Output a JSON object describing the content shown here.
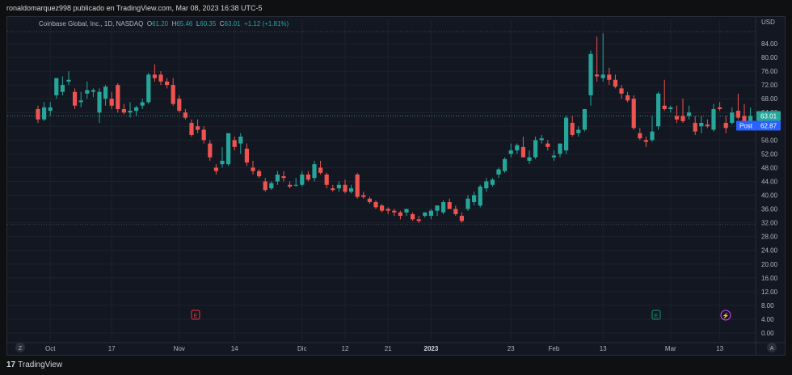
{
  "header": {
    "publisher_line": "ronaldomarquez998 publicado en TradingView.com, Mar 08, 2023 16:38 UTC-5"
  },
  "legend": {
    "symbol": "Coinbase Global, Inc., 1D, NASDAQ",
    "o_label": "O",
    "o": "61.20",
    "h_label": "H",
    "h": "65.46",
    "l_label": "L",
    "l": "60.35",
    "c_label": "C",
    "c": "63.01",
    "change": "+1.12 (+1.81%)"
  },
  "price_axis": {
    "currency": "USD",
    "last_price_badge": "63.01",
    "post_label": "Post",
    "post_price": "62.87"
  },
  "footer": {
    "brand": "TradingView",
    "brand_mark": "17",
    "z_button": "Z",
    "a_button": "A"
  },
  "events": [
    {
      "name": "earnings-flag-1",
      "glyph": "E",
      "color": "#f23645"
    },
    {
      "name": "earnings-flag-2",
      "glyph": "E",
      "color": "#089981"
    },
    {
      "name": "dividend-split-flag",
      "glyph": "⚡",
      "color": "#e040fb"
    }
  ],
  "colors": {
    "up": "#26a69a",
    "down": "#ef5350",
    "background": "#131722",
    "grid": "#1e222d",
    "last_price": "#26a69a",
    "post": "#2962ff"
  },
  "chart_data": {
    "type": "candlestick",
    "y_axis": {
      "min": 0,
      "max": 88,
      "ticks": [
        0,
        4,
        8,
        12,
        16,
        20,
        24,
        28,
        32,
        36,
        40,
        44,
        48,
        52,
        56,
        60,
        64,
        68,
        72,
        76,
        80,
        84
      ],
      "tick_labels": [
        "0.00",
        "4.00",
        "8.00",
        "12.00",
        "16.00",
        "20.00",
        "24.00",
        "28.00",
        "32.00",
        "36.00",
        "40.00",
        "44.00",
        "48.00",
        "52.00",
        "56.00",
        "60.00",
        "64.00",
        "68.00",
        "72.00",
        "76.00",
        "80.00",
        "84.00"
      ]
    },
    "x_labels": [
      {
        "label": "Oct",
        "index": 2,
        "bold": false
      },
      {
        "label": "17",
        "index": 12,
        "bold": false
      },
      {
        "label": "Nov",
        "index": 23,
        "bold": false
      },
      {
        "label": "14",
        "index": 32,
        "bold": false
      },
      {
        "label": "Dic",
        "index": 43,
        "bold": false
      },
      {
        "label": "12",
        "index": 50,
        "bold": false
      },
      {
        "label": "21",
        "index": 57,
        "bold": false
      },
      {
        "label": "2023",
        "index": 64,
        "bold": true
      },
      {
        "label": "23",
        "index": 77,
        "bold": false
      },
      {
        "label": "Feb",
        "index": 84,
        "bold": false
      },
      {
        "label": "13",
        "index": 92,
        "bold": false
      },
      {
        "label": "Mar",
        "index": 103,
        "bold": false
      },
      {
        "label": "13",
        "index": 111,
        "bold": false
      }
    ],
    "reference_lines": {
      "high": 87.5,
      "low": 31.5,
      "last": 63.01
    },
    "candles": [
      {
        "o": 65,
        "h": 66,
        "l": 61,
        "c": 62
      },
      {
        "o": 62,
        "h": 67,
        "l": 61.5,
        "c": 65.5
      },
      {
        "o": 64.5,
        "h": 67,
        "l": 63,
        "c": 65.5
      },
      {
        "o": 69,
        "h": 74,
        "l": 68,
        "c": 74
      },
      {
        "o": 70,
        "h": 74.5,
        "l": 69,
        "c": 72
      },
      {
        "o": 73,
        "h": 76,
        "l": 72,
        "c": 73.5
      },
      {
        "o": 70,
        "h": 71,
        "l": 65,
        "c": 66
      },
      {
        "o": 67,
        "h": 70,
        "l": 65.5,
        "c": 67.5
      },
      {
        "o": 69.5,
        "h": 73,
        "l": 68,
        "c": 70.5
      },
      {
        "o": 70,
        "h": 71,
        "l": 68.5,
        "c": 70.5
      },
      {
        "o": 64,
        "h": 71,
        "l": 61,
        "c": 70
      },
      {
        "o": 68,
        "h": 72,
        "l": 66,
        "c": 71.5
      },
      {
        "o": 68,
        "h": 70,
        "l": 65,
        "c": 66
      },
      {
        "o": 72,
        "h": 72.5,
        "l": 64,
        "c": 65
      },
      {
        "o": 65,
        "h": 66.5,
        "l": 63.5,
        "c": 64
      },
      {
        "o": 64,
        "h": 67,
        "l": 62.5,
        "c": 64.5
      },
      {
        "o": 64.5,
        "h": 66,
        "l": 63,
        "c": 65.5
      },
      {
        "o": 66,
        "h": 68,
        "l": 65,
        "c": 67
      },
      {
        "o": 67,
        "h": 75.5,
        "l": 66.5,
        "c": 75
      },
      {
        "o": 75,
        "h": 78,
        "l": 73,
        "c": 74
      },
      {
        "o": 75,
        "h": 76,
        "l": 72,
        "c": 73
      },
      {
        "o": 73,
        "h": 74,
        "l": 71,
        "c": 72
      },
      {
        "o": 72,
        "h": 74,
        "l": 66,
        "c": 66.5
      },
      {
        "o": 68,
        "h": 69,
        "l": 64,
        "c": 64.5
      },
      {
        "o": 64,
        "h": 65,
        "l": 62,
        "c": 62.5
      },
      {
        "o": 61,
        "h": 62,
        "l": 57,
        "c": 57.5
      },
      {
        "o": 60,
        "h": 62,
        "l": 58,
        "c": 59
      },
      {
        "o": 59,
        "h": 60,
        "l": 55,
        "c": 56
      },
      {
        "o": 55,
        "h": 56,
        "l": 50,
        "c": 51
      },
      {
        "o": 48,
        "h": 49,
        "l": 46,
        "c": 47
      },
      {
        "o": 49,
        "h": 54,
        "l": 48,
        "c": 50
      },
      {
        "o": 49,
        "h": 58,
        "l": 48.5,
        "c": 58
      },
      {
        "o": 56,
        "h": 57,
        "l": 53,
        "c": 54
      },
      {
        "o": 55,
        "h": 58,
        "l": 52,
        "c": 57
      },
      {
        "o": 53.5,
        "h": 55,
        "l": 48.5,
        "c": 49.5
      },
      {
        "o": 48,
        "h": 50,
        "l": 46,
        "c": 47
      },
      {
        "o": 47,
        "h": 47.5,
        "l": 45,
        "c": 45.5
      },
      {
        "o": 44,
        "h": 45,
        "l": 41,
        "c": 41.5
      },
      {
        "o": 42,
        "h": 44,
        "l": 41.5,
        "c": 43.5
      },
      {
        "o": 44,
        "h": 47,
        "l": 43,
        "c": 46
      },
      {
        "o": 45.5,
        "h": 47,
        "l": 44,
        "c": 45
      },
      {
        "o": 43,
        "h": 44,
        "l": 42,
        "c": 42.5
      },
      {
        "o": 43,
        "h": 45,
        "l": 42.5,
        "c": 43
      },
      {
        "o": 43,
        "h": 47,
        "l": 42.5,
        "c": 46
      },
      {
        "o": 46,
        "h": 47,
        "l": 44,
        "c": 44.5
      },
      {
        "o": 45,
        "h": 50,
        "l": 44,
        "c": 49
      },
      {
        "o": 48,
        "h": 50,
        "l": 46,
        "c": 46.5
      },
      {
        "o": 46,
        "h": 46.5,
        "l": 42,
        "c": 43
      },
      {
        "o": 42,
        "h": 43,
        "l": 41,
        "c": 41.5
      },
      {
        "o": 42,
        "h": 44,
        "l": 41,
        "c": 43
      },
      {
        "o": 43,
        "h": 44.5,
        "l": 40.5,
        "c": 41
      },
      {
        "o": 41,
        "h": 43,
        "l": 40.5,
        "c": 42
      },
      {
        "o": 46,
        "h": 46.5,
        "l": 39,
        "c": 39.5
      },
      {
        "o": 40,
        "h": 41,
        "l": 39,
        "c": 39.5
      },
      {
        "o": 39,
        "h": 39.5,
        "l": 37.5,
        "c": 38
      },
      {
        "o": 38,
        "h": 38.5,
        "l": 36,
        "c": 36.5
      },
      {
        "o": 37,
        "h": 37.5,
        "l": 35,
        "c": 35.5
      },
      {
        "o": 36,
        "h": 36.5,
        "l": 34.5,
        "c": 35.5
      },
      {
        "o": 35.5,
        "h": 36,
        "l": 34,
        "c": 35
      },
      {
        "o": 35,
        "h": 35.5,
        "l": 33,
        "c": 34
      },
      {
        "o": 35,
        "h": 36,
        "l": 34,
        "c": 36
      },
      {
        "o": 34.5,
        "h": 35,
        "l": 32.5,
        "c": 33
      },
      {
        "o": 33,
        "h": 34,
        "l": 32,
        "c": 32.5
      },
      {
        "o": 34,
        "h": 35,
        "l": 33.5,
        "c": 35
      },
      {
        "o": 34,
        "h": 36,
        "l": 33,
        "c": 35.5
      },
      {
        "o": 35.5,
        "h": 37,
        "l": 34,
        "c": 37
      },
      {
        "o": 35,
        "h": 38.5,
        "l": 34.5,
        "c": 38
      },
      {
        "o": 38,
        "h": 39,
        "l": 36,
        "c": 36
      },
      {
        "o": 36,
        "h": 37,
        "l": 34,
        "c": 34.5
      },
      {
        "o": 34,
        "h": 35,
        "l": 32,
        "c": 32.5
      },
      {
        "o": 36,
        "h": 40,
        "l": 35.5,
        "c": 39
      },
      {
        "o": 38,
        "h": 41,
        "l": 37,
        "c": 40
      },
      {
        "o": 37,
        "h": 43,
        "l": 36.5,
        "c": 42.5
      },
      {
        "o": 42,
        "h": 45,
        "l": 41,
        "c": 44
      },
      {
        "o": 43,
        "h": 45,
        "l": 42.5,
        "c": 44.5
      },
      {
        "o": 46,
        "h": 48,
        "l": 45,
        "c": 47.5
      },
      {
        "o": 47,
        "h": 51,
        "l": 46.5,
        "c": 50.5
      },
      {
        "o": 52,
        "h": 55,
        "l": 51,
        "c": 53
      },
      {
        "o": 53,
        "h": 55,
        "l": 52,
        "c": 54.5
      },
      {
        "o": 54,
        "h": 57,
        "l": 51,
        "c": 51
      },
      {
        "o": 50,
        "h": 53,
        "l": 49,
        "c": 51
      },
      {
        "o": 51,
        "h": 57,
        "l": 50.5,
        "c": 56
      },
      {
        "o": 56,
        "h": 57.5,
        "l": 55,
        "c": 56.5
      },
      {
        "o": 55,
        "h": 56,
        "l": 53,
        "c": 54
      },
      {
        "o": 51,
        "h": 53,
        "l": 50,
        "c": 51.5
      },
      {
        "o": 52,
        "h": 55,
        "l": 51,
        "c": 55
      },
      {
        "o": 53,
        "h": 63,
        "l": 52,
        "c": 62.5
      },
      {
        "o": 61,
        "h": 63,
        "l": 57,
        "c": 57.5
      },
      {
        "o": 58,
        "h": 60,
        "l": 57,
        "c": 59
      },
      {
        "o": 59,
        "h": 65,
        "l": 58.5,
        "c": 65
      },
      {
        "o": 69,
        "h": 82,
        "l": 66,
        "c": 81
      },
      {
        "o": 75,
        "h": 86,
        "l": 73,
        "c": 74.5
      },
      {
        "o": 74,
        "h": 87,
        "l": 73,
        "c": 75
      },
      {
        "o": 75,
        "h": 77,
        "l": 72,
        "c": 73.5
      },
      {
        "o": 73.5,
        "h": 75,
        "l": 71,
        "c": 71.5
      },
      {
        "o": 71,
        "h": 72,
        "l": 68,
        "c": 69.5
      },
      {
        "o": 69,
        "h": 70,
        "l": 67,
        "c": 67.5
      },
      {
        "o": 68,
        "h": 69,
        "l": 59,
        "c": 59.5
      },
      {
        "o": 58,
        "h": 59.5,
        "l": 56,
        "c": 56.5
      },
      {
        "o": 56,
        "h": 57,
        "l": 54,
        "c": 55.5
      },
      {
        "o": 56,
        "h": 63,
        "l": 55.5,
        "c": 58.5
      },
      {
        "o": 60,
        "h": 70,
        "l": 59,
        "c": 69.5
      },
      {
        "o": 66,
        "h": 73.5,
        "l": 64.5,
        "c": 65
      },
      {
        "o": 65,
        "h": 66,
        "l": 64,
        "c": 65.5
      },
      {
        "o": 63,
        "h": 66,
        "l": 61,
        "c": 62
      },
      {
        "o": 63,
        "h": 68,
        "l": 61,
        "c": 61.5
      },
      {
        "o": 63,
        "h": 66,
        "l": 62,
        "c": 64
      },
      {
        "o": 61,
        "h": 63,
        "l": 57.5,
        "c": 58.5
      },
      {
        "o": 60,
        "h": 63,
        "l": 58,
        "c": 61
      },
      {
        "o": 60.5,
        "h": 62,
        "l": 59.5,
        "c": 60
      },
      {
        "o": 59,
        "h": 66.5,
        "l": 58.5,
        "c": 65
      },
      {
        "o": 65.5,
        "h": 67,
        "l": 64.5,
        "c": 65
      },
      {
        "o": 61,
        "h": 63,
        "l": 58,
        "c": 59.5
      },
      {
        "o": 61,
        "h": 65.5,
        "l": 60.5,
        "c": 64
      },
      {
        "o": 64.5,
        "h": 69.5,
        "l": 62,
        "c": 62.5
      },
      {
        "o": 63,
        "h": 66.5,
        "l": 61,
        "c": 61.5
      },
      {
        "o": 61.2,
        "h": 65.46,
        "l": 60.35,
        "c": 63.01
      }
    ]
  }
}
